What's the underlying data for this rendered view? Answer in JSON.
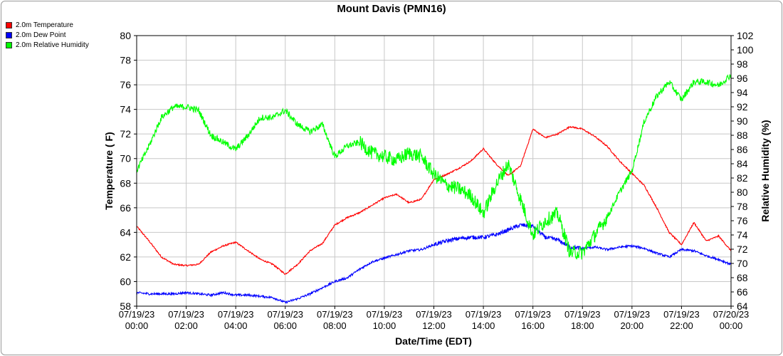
{
  "chart_data": {
    "type": "line",
    "title": "Mount Davis (PMN16)",
    "xlabel": "Date/Time (EDT)",
    "ylabel": "Temperature ( F)",
    "y2label": "Relative Humidity (%)",
    "ylim": [
      58,
      80
    ],
    "y2lim": [
      64,
      102
    ],
    "yticks": [
      58,
      60,
      62,
      64,
      66,
      68,
      70,
      72,
      74,
      76,
      78,
      80
    ],
    "y2ticks": [
      64,
      66,
      68,
      70,
      72,
      74,
      76,
      78,
      80,
      82,
      84,
      86,
      88,
      90,
      92,
      94,
      96,
      98,
      100,
      102
    ],
    "xlim_hours": [
      0,
      24
    ],
    "xticks": [
      {
        "date": "07/19/23",
        "time": "00:00",
        "hour": 0
      },
      {
        "date": "07/19/23",
        "time": "02:00",
        "hour": 2
      },
      {
        "date": "07/19/23",
        "time": "04:00",
        "hour": 4
      },
      {
        "date": "07/19/23",
        "time": "06:00",
        "hour": 6
      },
      {
        "date": "07/19/23",
        "time": "08:00",
        "hour": 8
      },
      {
        "date": "07/19/23",
        "time": "10:00",
        "hour": 10
      },
      {
        "date": "07/19/23",
        "time": "12:00",
        "hour": 12
      },
      {
        "date": "07/19/23",
        "time": "14:00",
        "hour": 14
      },
      {
        "date": "07/19/23",
        "time": "16:00",
        "hour": 16
      },
      {
        "date": "07/19/23",
        "time": "18:00",
        "hour": 18
      },
      {
        "date": "07/19/23",
        "time": "20:00",
        "hour": 20
      },
      {
        "date": "07/19/23",
        "time": "22:00",
        "hour": 22
      },
      {
        "date": "07/20/23",
        "time": "00:00",
        "hour": 24
      }
    ],
    "grid": true,
    "legend_position": "top-left",
    "series": [
      {
        "name": "2.0m Temperature",
        "color": "#ff0000",
        "axis": "left",
        "x_hours": [
          0,
          0.5,
          1,
          1.5,
          2,
          2.5,
          3,
          3.5,
          4,
          4.5,
          5,
          5.5,
          6,
          6.5,
          7,
          7.5,
          8,
          8.5,
          9,
          9.5,
          10,
          10.5,
          11,
          11.5,
          12,
          12.5,
          13,
          13.5,
          14,
          14.5,
          15,
          15.5,
          16,
          16.5,
          17,
          17.5,
          18,
          18.5,
          19,
          19.5,
          20,
          20.5,
          21,
          21.5,
          22,
          22.5,
          23,
          23.5,
          24
        ],
        "values": [
          64.5,
          63.3,
          62.0,
          61.4,
          61.3,
          61.4,
          62.4,
          62.9,
          63.2,
          62.5,
          61.8,
          61.4,
          60.6,
          61.4,
          62.5,
          63.1,
          64.6,
          65.2,
          65.6,
          66.2,
          66.8,
          67.1,
          66.4,
          66.7,
          68.3,
          68.7,
          69.2,
          69.8,
          70.8,
          69.6,
          68.6,
          69.4,
          72.4,
          71.7,
          72.0,
          72.6,
          72.4,
          71.8,
          71.0,
          69.8,
          68.8,
          67.8,
          66.0,
          64.0,
          63.0,
          64.8,
          63.3,
          63.7,
          62.5
        ]
      },
      {
        "name": "2.0m Dew Point",
        "color": "#0000ff",
        "axis": "left",
        "x_hours": [
          0,
          0.5,
          1,
          1.5,
          2,
          2.5,
          3,
          3.5,
          4,
          4.5,
          5,
          5.5,
          6,
          6.5,
          7,
          7.5,
          8,
          8.5,
          9,
          9.5,
          10,
          10.5,
          11,
          11.5,
          12,
          12.5,
          13,
          13.5,
          14,
          14.5,
          15,
          15.5,
          16,
          16.5,
          17,
          17.5,
          18,
          18.5,
          19,
          19.5,
          20,
          20.5,
          21,
          21.5,
          22,
          22.5,
          23,
          23.5,
          24
        ],
        "values": [
          59.1,
          59.0,
          59.0,
          59.0,
          59.1,
          59.0,
          58.9,
          59.1,
          58.9,
          58.9,
          58.8,
          58.7,
          58.3,
          58.6,
          59.0,
          59.5,
          60.0,
          60.3,
          61.0,
          61.6,
          61.9,
          62.2,
          62.5,
          62.6,
          63.0,
          63.3,
          63.5,
          63.6,
          63.6,
          63.8,
          64.2,
          64.6,
          64.5,
          63.6,
          63.4,
          62.8,
          62.7,
          62.8,
          62.6,
          62.8,
          62.9,
          62.7,
          62.3,
          62.0,
          62.6,
          62.5,
          62.1,
          61.8,
          61.4
        ]
      },
      {
        "name": "2.0m Relative Humidity",
        "color": "#00ff00",
        "axis": "right",
        "x_hours": [
          0,
          0.5,
          1,
          1.5,
          2,
          2.5,
          3,
          3.5,
          4,
          4.5,
          5,
          5.5,
          6,
          6.5,
          7,
          7.5,
          8,
          8.5,
          9,
          9.5,
          10,
          10.5,
          11,
          11.5,
          12,
          12.5,
          13,
          13.5,
          14,
          14.5,
          15,
          15.5,
          16,
          16.5,
          17,
          17.5,
          18,
          18.5,
          19,
          19.5,
          20,
          20.5,
          21,
          21.5,
          22,
          22.5,
          23,
          23.5,
          24
        ],
        "values": [
          83,
          86.5,
          90.5,
          92,
          92,
          91.5,
          88,
          87,
          86,
          88,
          90.5,
          90.5,
          91.5,
          89.5,
          88.5,
          89.5,
          85,
          86.5,
          87,
          85.5,
          85,
          84.5,
          85.5,
          85,
          82.5,
          81,
          80.5,
          79.5,
          77,
          81,
          84,
          79,
          74,
          76,
          77,
          71.5,
          71.5,
          74,
          76.5,
          80,
          83,
          90,
          93.5,
          95.5,
          93,
          95.5,
          95.5,
          95,
          96.5
        ]
      }
    ]
  }
}
